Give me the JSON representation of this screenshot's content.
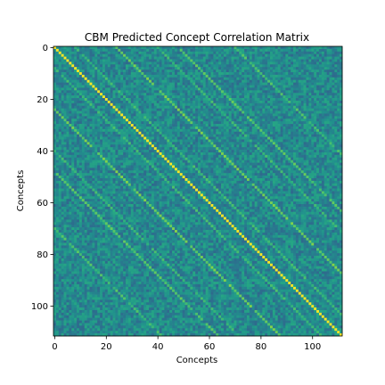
{
  "chart_data": {
    "type": "heatmap",
    "title": "CBM Predicted Concept Correlation Matrix",
    "xlabel": "Concepts",
    "ylabel": "Concepts",
    "n": 112,
    "xticks": [
      0,
      20,
      40,
      60,
      80,
      100
    ],
    "yticks": [
      0,
      20,
      40,
      60,
      80,
      100
    ],
    "colormap": "viridis",
    "value_range": [
      -1,
      1
    ],
    "diagonal_value": 1.0,
    "off_diagonal_bands": [
      {
        "offset": 24,
        "value": 0.55
      },
      {
        "offset": -24,
        "value": 0.55
      },
      {
        "offset": 48,
        "value": 0.45
      },
      {
        "offset": -48,
        "value": 0.45
      },
      {
        "offset": 8,
        "value": 0.35
      },
      {
        "offset": -8,
        "value": 0.35
      },
      {
        "offset": 40,
        "value": 0.35
      },
      {
        "offset": -40,
        "value": 0.35
      },
      {
        "offset": 70,
        "value": 0.4
      },
      {
        "offset": -70,
        "value": 0.4
      }
    ],
    "background_mean": -0.05,
    "background_spread": 0.25
  }
}
